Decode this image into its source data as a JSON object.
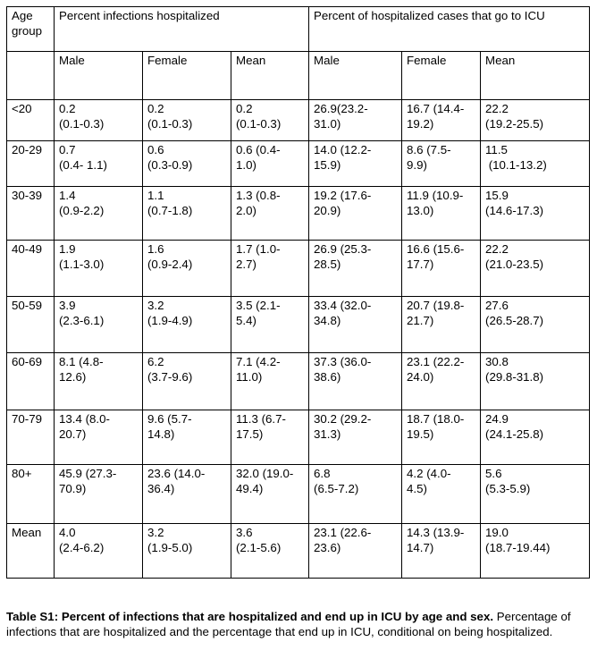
{
  "page": {
    "background_color": "#ffffff",
    "text_color": "#000000",
    "border_color": "#000000"
  },
  "table": {
    "header_row_1": {
      "age_group": "Age group",
      "section_hospitalized": "Percent infections hospitalized",
      "section_icu": "Percent of hospitalized cases that go to ICU"
    },
    "header_row_2": {
      "spacer": "",
      "labels": [
        "Male",
        "Female",
        "Mean",
        "Male",
        "Female",
        "Mean"
      ]
    },
    "rows": [
      {
        "age": "<20",
        "cells": [
          "0.2\n(0.1-0.3)",
          "0.2\n(0.1-0.3)",
          "0.2\n(0.1-0.3)",
          "26.9(23.2-\n31.0)",
          "16.7 (14.4-\n19.2)",
          "22.2\n(19.2-25.5)"
        ]
      },
      {
        "age": "20-29",
        "cells": [
          "0.7\n(0.4- 1.1)",
          "0.6\n(0.3-0.9)",
          "0.6 (0.4-\n1.0)",
          "14.0 (12.2-\n15.9)",
          "8.6 (7.5-\n9.9)",
          "11.5\n (10.1-13.2)"
        ]
      },
      {
        "age": "30-39",
        "cells": [
          "1.4\n(0.9-2.2)",
          "1.1\n(0.7-1.8)",
          "1.3 (0.8-\n2.0)",
          "19.2 (17.6-\n20.9)",
          "11.9 (10.9-\n13.0)",
          "15.9\n(14.6-17.3)"
        ]
      },
      {
        "age": "40-49",
        "cells": [
          "1.9\n(1.1-3.0)",
          "1.6\n(0.9-2.4)",
          "1.7 (1.0-\n2.7)",
          "26.9 (25.3-\n28.5)",
          "16.6 (15.6-\n17.7)",
          "22.2\n(21.0-23.5)"
        ]
      },
      {
        "age": "50-59",
        "cells": [
          "3.9\n(2.3-6.1)",
          "3.2\n(1.9-4.9)",
          "3.5 (2.1-\n5.4)",
          "33.4 (32.0-\n34.8)",
          "20.7 (19.8-\n21.7)",
          "27.6\n(26.5-28.7)"
        ]
      },
      {
        "age": "60-69",
        "cells": [
          "8.1 (4.8-\n12.6)",
          "6.2\n(3.7-9.6)",
          "7.1 (4.2-\n11.0)",
          "37.3 (36.0-\n38.6)",
          "23.1 (22.2-\n24.0)",
          "30.8\n(29.8-31.8)"
        ]
      },
      {
        "age": "70-79",
        "cells": [
          "13.4 (8.0-\n20.7)",
          "9.6 (5.7-\n14.8)",
          "11.3 (6.7-\n17.5)",
          "30.2 (29.2-\n31.3)",
          "18.7 (18.0-\n19.5)",
          "24.9\n(24.1-25.8)"
        ]
      },
      {
        "age": "80+",
        "cells": [
          "45.9 (27.3-\n70.9)",
          "23.6 (14.0-\n36.4)",
          "32.0 (19.0-\n49.4)",
          "6.8\n(6.5-7.2)",
          "4.2 (4.0-\n4.5)",
          "5.6\n(5.3-5.9)"
        ]
      },
      {
        "age": "Mean",
        "cells": [
          "4.0\n(2.4-6.2)",
          "3.2\n(1.9-5.0)",
          "3.6\n(2.1-5.6)",
          "23.1 (22.6-\n23.6)",
          "14.3 (13.9-\n14.7)",
          "19.0\n(18.7-19.44)"
        ]
      }
    ]
  },
  "caption": {
    "title": "Table S1: Percent of infections that are hospitalized and end up in ICU by age and sex.",
    "body": "Percentage of infections that are hospitalized and the percentage that end up in ICU, conditional on being hospitalized."
  }
}
